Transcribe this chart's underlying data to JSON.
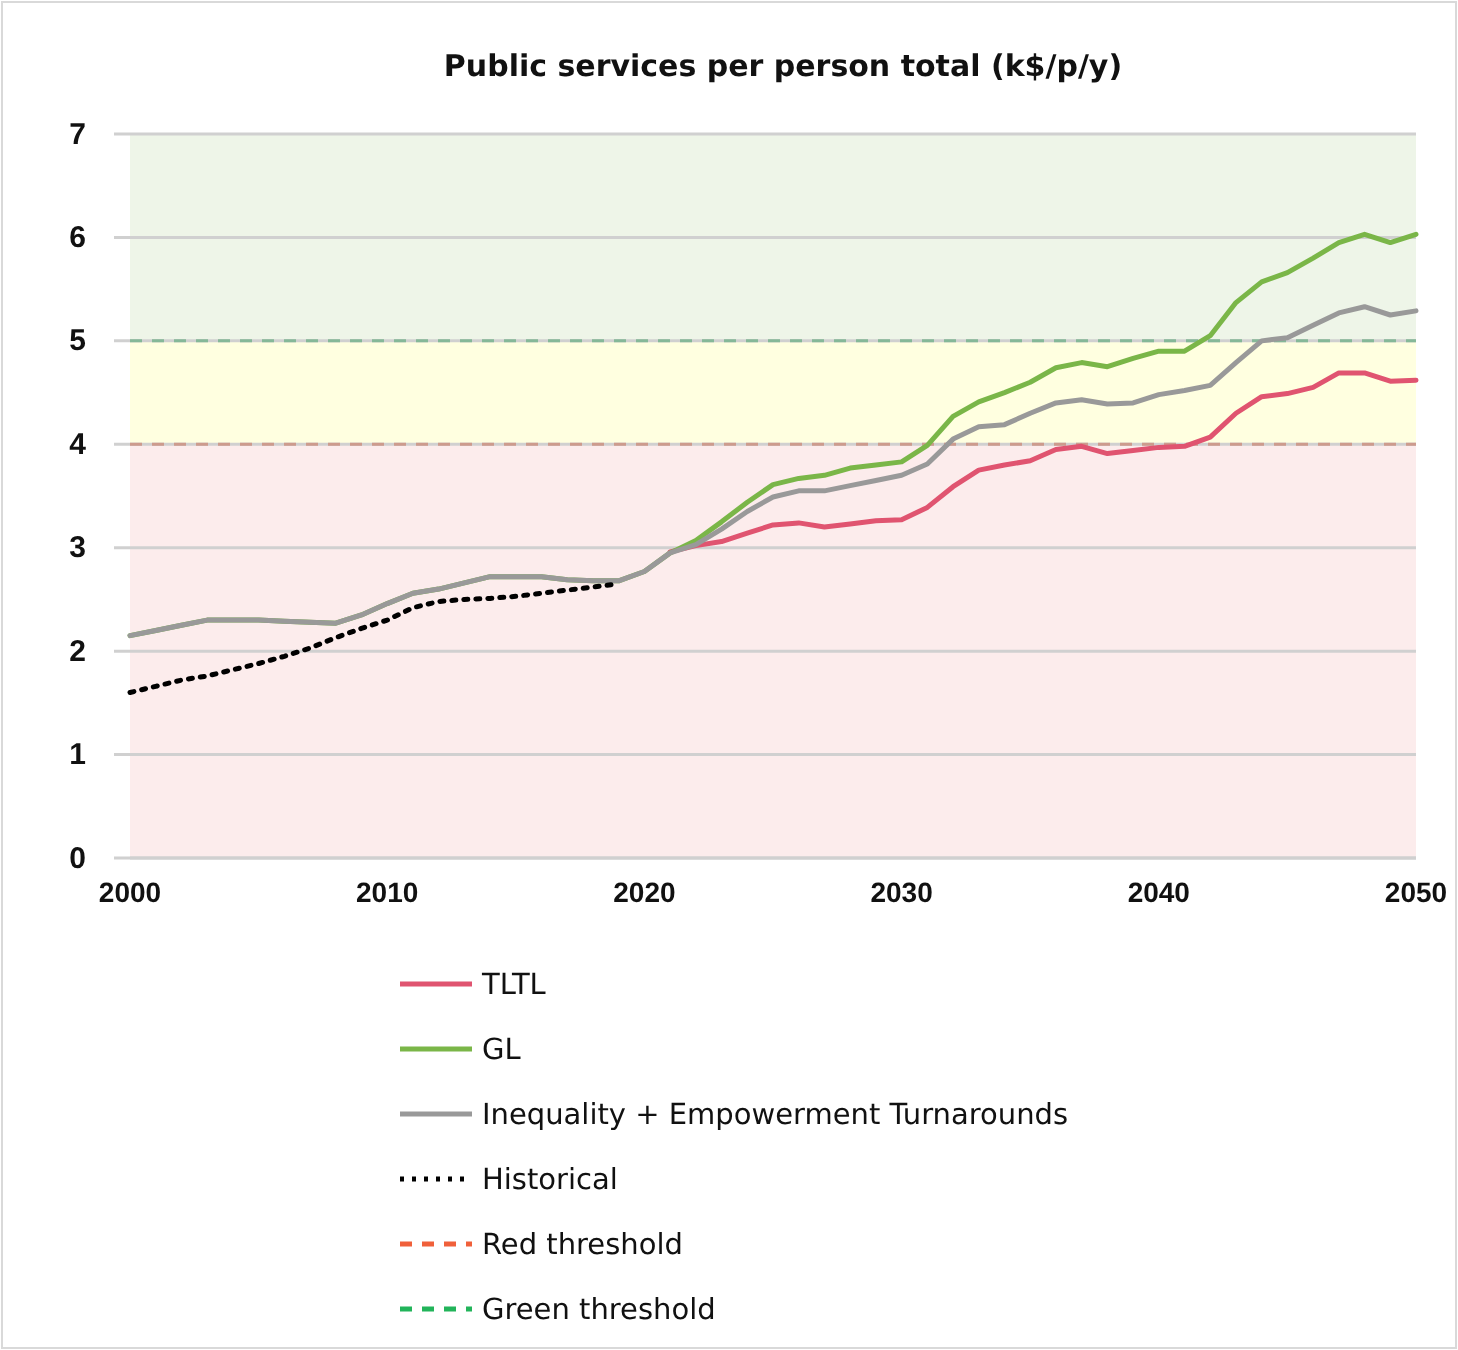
{
  "chart_data": {
    "type": "line",
    "title": "Public services per person total (k$/p/y)",
    "xlim": [
      2000,
      2050
    ],
    "xticks": [
      2000,
      2010,
      2020,
      2030,
      2040,
      2050
    ],
    "ylim": [
      0,
      7
    ],
    "yticks": [
      0,
      1,
      2,
      3,
      4,
      5,
      6,
      7
    ],
    "grid": "y",
    "legend": "bottom",
    "series": [
      {
        "name": "TLTL",
        "color": "#e05470",
        "x": [
          2021,
          2022,
          2023,
          2024,
          2025,
          2026,
          2027,
          2028,
          2029,
          2030,
          2031,
          2032,
          2033,
          2034,
          2035,
          2036,
          2037,
          2038,
          2039,
          2040,
          2041,
          2042,
          2043,
          2044,
          2045,
          2046,
          2047,
          2048,
          2049,
          2050
        ],
        "values": [
          2.96,
          3.02,
          3.06,
          3.14,
          3.22,
          3.24,
          3.2,
          3.23,
          3.26,
          3.27,
          3.39,
          3.59,
          3.75,
          3.8,
          3.84,
          3.95,
          3.98,
          3.91,
          3.94,
          3.97,
          3.98,
          4.07,
          4.3,
          4.46,
          4.49,
          4.55,
          4.69,
          4.69,
          4.61,
          4.62
        ]
      },
      {
        "name": "GL",
        "color": "#7ab648",
        "x": [
          2000,
          2001,
          2002,
          2003,
          2004,
          2005,
          2006,
          2007,
          2008,
          2009,
          2010,
          2011,
          2012,
          2013,
          2014,
          2015,
          2016,
          2017,
          2018,
          2019,
          2020,
          2021,
          2022,
          2023,
          2024,
          2025,
          2026,
          2027,
          2028,
          2029,
          2030,
          2031,
          2032,
          2033,
          2034,
          2035,
          2036,
          2037,
          2038,
          2039,
          2040,
          2041,
          2042,
          2043,
          2044,
          2045,
          2046,
          2047,
          2048,
          2049,
          2050
        ],
        "values": [
          2.15,
          2.2,
          2.25,
          2.3,
          2.3,
          2.3,
          2.29,
          2.28,
          2.27,
          2.35,
          2.46,
          2.56,
          2.6,
          2.66,
          2.72,
          2.72,
          2.72,
          2.69,
          2.68,
          2.68,
          2.77,
          2.95,
          3.07,
          3.25,
          3.44,
          3.61,
          3.67,
          3.7,
          3.77,
          3.8,
          3.83,
          3.99,
          4.27,
          4.41,
          4.5,
          4.6,
          4.74,
          4.79,
          4.75,
          4.83,
          4.9,
          4.9,
          5.05,
          5.37,
          5.57,
          5.66,
          5.8,
          5.95,
          6.03,
          5.95,
          6.03
        ]
      },
      {
        "name": "Inequality + Empowerment Turnarounds",
        "color": "#999999",
        "x": [
          2000,
          2001,
          2002,
          2003,
          2004,
          2005,
          2006,
          2007,
          2008,
          2009,
          2010,
          2011,
          2012,
          2013,
          2014,
          2015,
          2016,
          2017,
          2018,
          2019,
          2020,
          2021,
          2022,
          2023,
          2024,
          2025,
          2026,
          2027,
          2028,
          2029,
          2030,
          2031,
          2032,
          2033,
          2034,
          2035,
          2036,
          2037,
          2038,
          2039,
          2040,
          2041,
          2042,
          2043,
          2044,
          2045,
          2046,
          2047,
          2048,
          2049,
          2050
        ],
        "values": [
          2.15,
          2.2,
          2.25,
          2.3,
          2.3,
          2.3,
          2.29,
          2.28,
          2.27,
          2.35,
          2.46,
          2.56,
          2.6,
          2.66,
          2.72,
          2.72,
          2.72,
          2.69,
          2.68,
          2.68,
          2.77,
          2.95,
          3.03,
          3.18,
          3.35,
          3.49,
          3.55,
          3.55,
          3.6,
          3.65,
          3.7,
          3.81,
          4.05,
          4.17,
          4.19,
          4.3,
          4.4,
          4.43,
          4.39,
          4.4,
          4.48,
          4.52,
          4.57,
          4.79,
          5.0,
          5.03,
          5.15,
          5.27,
          5.33,
          5.25,
          5.29
        ]
      },
      {
        "name": "Historical",
        "color": "#000000",
        "line_style": "dotted",
        "x": [
          2000,
          2001,
          2002,
          2003,
          2004,
          2005,
          2006,
          2007,
          2008,
          2009,
          2010,
          2011,
          2012,
          2013,
          2014,
          2015,
          2016,
          2017,
          2018,
          2019
        ],
        "values": [
          1.6,
          1.66,
          1.72,
          1.76,
          1.82,
          1.88,
          1.95,
          2.03,
          2.13,
          2.22,
          2.3,
          2.42,
          2.48,
          2.5,
          2.51,
          2.53,
          2.56,
          2.59,
          2.62,
          2.65
        ]
      }
    ],
    "ref_lines": [
      {
        "axis": "y",
        "value": 4,
        "label": "Red threshold",
        "color": "#f0603a",
        "line_style": "dashed"
      },
      {
        "axis": "y",
        "value": 5,
        "label": "Green threshold",
        "color": "#22b45a",
        "line_style": "dashed"
      }
    ],
    "bands": [
      {
        "axis": "y",
        "from": 0,
        "to": 4,
        "color": "#fcecec"
      },
      {
        "axis": "y",
        "from": 4,
        "to": 5,
        "color": "#ffffe0"
      },
      {
        "axis": "y",
        "from": 5,
        "to": 7,
        "color": "#eef5e8"
      }
    ]
  }
}
